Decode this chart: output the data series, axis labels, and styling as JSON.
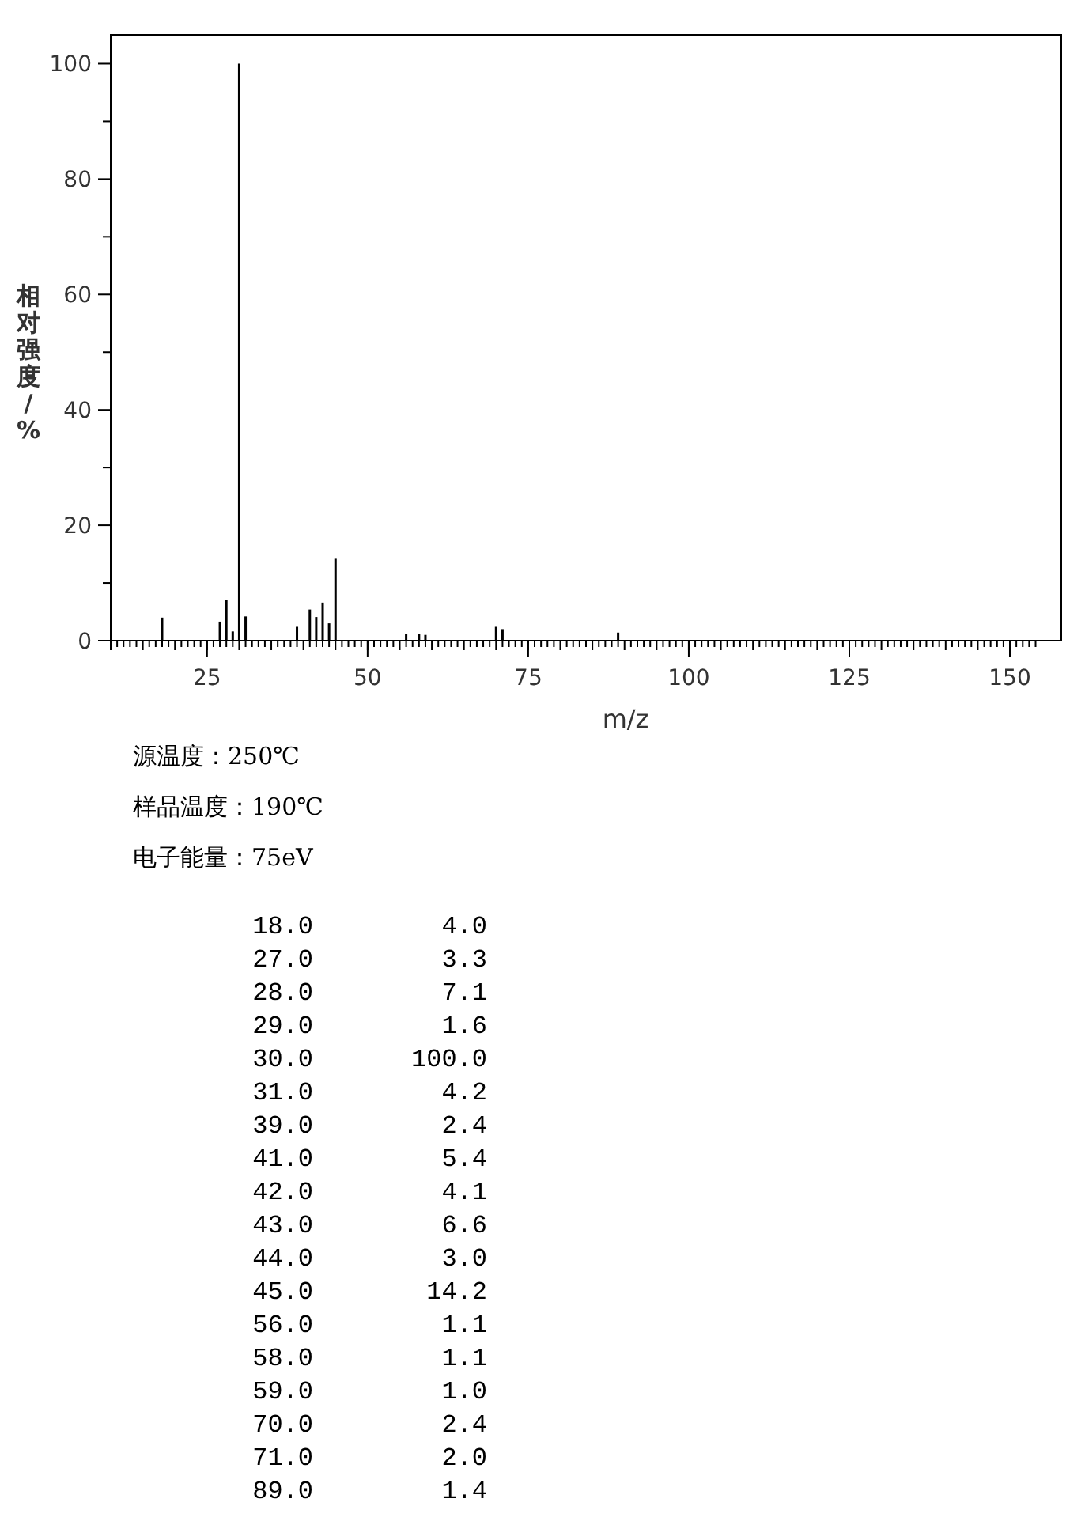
{
  "chart_data": {
    "type": "bar",
    "xlabel": "m/z",
    "ylabel": "相对强度/%",
    "x": [
      18,
      27,
      28,
      29,
      30,
      31,
      39,
      41,
      42,
      43,
      44,
      45,
      56,
      58,
      59,
      70,
      71,
      89
    ],
    "values": [
      4.0,
      3.3,
      7.1,
      1.6,
      100.0,
      4.2,
      2.4,
      5.4,
      4.1,
      6.6,
      3.0,
      14.2,
      1.1,
      1.1,
      1.0,
      2.4,
      2.0,
      1.4
    ],
    "color": "#000000",
    "xlim": [
      10,
      158
    ],
    "ylim": [
      0,
      105
    ],
    "xticks": [
      25,
      50,
      75,
      100,
      125,
      150
    ],
    "yticks": [
      0,
      20,
      40,
      60,
      80,
      100
    ],
    "annotations": [
      "源温度：250℃",
      "样品温度：190℃",
      "电子能量：75eV",
      "18.0",
      "4.0",
      "27.0",
      "3.3",
      "28.0",
      "7.1",
      "29.0",
      "1.6",
      "30.0",
      "100.0",
      "31.0",
      "4.2",
      "39.0",
      "2.4",
      "41.0",
      "5.4",
      "42.0",
      "4.1",
      "43.0",
      "6.6",
      "44.0",
      "3.0",
      "45.0",
      "14.2",
      "56.0",
      "1.1",
      "58.0",
      "1.1",
      "59.0",
      "1.0",
      "70.0",
      "2.4",
      "71.0",
      "2.0",
      "89.0",
      "1.4"
    ]
  }
}
